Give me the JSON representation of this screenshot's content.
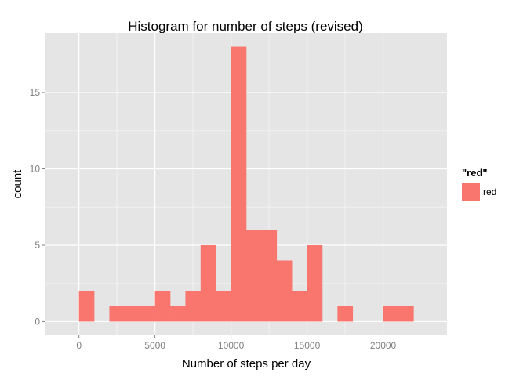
{
  "chart_data": {
    "type": "bar",
    "title": "Histogram for number of steps (revised)",
    "xlabel": "Number of steps per day",
    "ylabel": "count",
    "xlim": [
      -2200,
      24200
    ],
    "ylim": [
      -0.9,
      18.9
    ],
    "bin_width": 1000,
    "bin_starts": [
      0,
      1000,
      2000,
      3000,
      4000,
      5000,
      6000,
      7000,
      8000,
      9000,
      10000,
      11000,
      12000,
      13000,
      14000,
      15000,
      16000,
      17000,
      18000,
      19000,
      20000,
      21000
    ],
    "values": [
      2,
      0,
      1,
      1,
      1,
      2,
      1,
      2,
      5,
      2,
      18,
      6,
      6,
      4,
      2,
      5,
      0,
      1,
      0,
      0,
      1,
      1
    ],
    "x_ticks": [
      0,
      5000,
      10000,
      15000,
      20000
    ],
    "x_tick_labels": [
      "0",
      "5000",
      "10000",
      "15000",
      "20000"
    ],
    "y_ticks": [
      0,
      5,
      10,
      15
    ],
    "y_tick_labels": [
      "0",
      "5",
      "10",
      "15"
    ],
    "grid": true,
    "legend": {
      "title": "\"red\"",
      "entries": [
        "red"
      ],
      "placement": "right"
    },
    "colors": {
      "bar": "#f8766d",
      "panel": "#e5e5e5",
      "grid_major": "#ffffff",
      "grid_minor": "#f2f2f2"
    }
  }
}
